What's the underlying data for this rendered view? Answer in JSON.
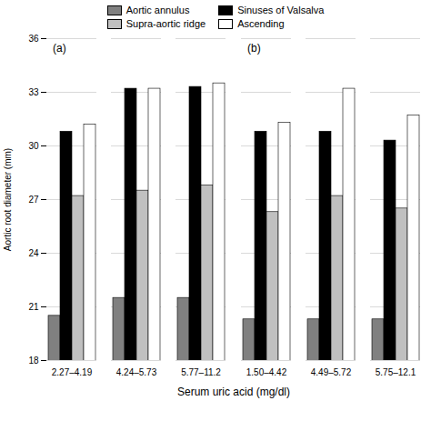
{
  "chart_data": [
    {
      "type": "bar",
      "title": "(a)",
      "categories": [
        "2.27–4.19",
        "4.24–5.73",
        "5.77–11.2"
      ],
      "series": [
        {
          "name": "Aortic annulus",
          "color": "#808080",
          "values": [
            20.5,
            21.5,
            21.5
          ]
        },
        {
          "name": "Sinuses of Valsalva",
          "color": "#000000",
          "values": [
            30.8,
            33.2,
            33.3
          ]
        },
        {
          "name": "Supra-aortic ridge",
          "color": "#c0c0c0",
          "values": [
            27.2,
            27.5,
            27.8
          ]
        },
        {
          "name": "Ascending",
          "color": "#ffffff",
          "values": [
            31.2,
            33.2,
            33.5
          ]
        }
      ],
      "ylabel": "Aortic root diameter (mm)",
      "xlabel": "Serum uric acid (mg/dl)",
      "ylim": [
        18,
        36
      ],
      "yticks": [
        18,
        21,
        24,
        27,
        30,
        33,
        36
      ],
      "grid": true,
      "legend": "top"
    },
    {
      "type": "bar",
      "title": "(b)",
      "categories": [
        "1.50–4.42",
        "4.49–5.72",
        "5.75–12.1"
      ],
      "series": [
        {
          "name": "Aortic annulus",
          "color": "#808080",
          "values": [
            20.3,
            20.3,
            20.3
          ]
        },
        {
          "name": "Sinuses of Valsalva",
          "color": "#000000",
          "values": [
            30.8,
            30.8,
            30.3
          ]
        },
        {
          "name": "Supra-aortic ridge",
          "color": "#c0c0c0",
          "values": [
            26.3,
            27.2,
            26.5
          ]
        },
        {
          "name": "Ascending",
          "color": "#ffffff",
          "values": [
            31.3,
            33.2,
            31.7
          ]
        }
      ],
      "ylim": [
        18,
        36
      ],
      "yticks": [
        18,
        21,
        24,
        27,
        30,
        33,
        36
      ],
      "grid": true,
      "tick_labels": "x"
    }
  ]
}
